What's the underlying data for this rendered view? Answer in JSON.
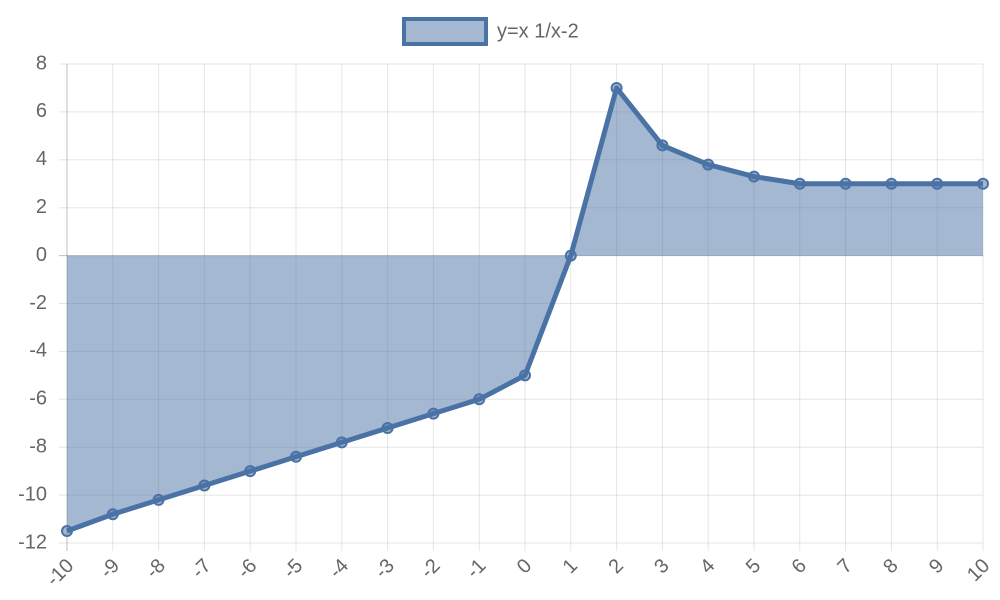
{
  "chart_data": {
    "type": "line",
    "fill": "origin",
    "x": [
      -10,
      -9,
      -8,
      -7,
      -6,
      -5,
      -4,
      -3,
      -2,
      -1,
      0,
      1,
      2,
      3,
      4,
      5,
      6,
      7,
      8,
      9,
      10
    ],
    "series": [
      {
        "name": "y=x 1/x-2",
        "color": "#4a72a5",
        "fill_color": "rgba(74,114,165,0.5)",
        "values": [
          -11.5,
          -10.8,
          -10.2,
          -9.6,
          -9.0,
          -8.4,
          -7.8,
          -7.2,
          -6.6,
          -6.0,
          -5.0,
          0,
          7,
          4.6,
          3.8,
          3.3,
          3.0,
          3.0,
          3.0,
          3.0,
          3.0
        ]
      }
    ],
    "xlim": [
      -10,
      10
    ],
    "xticks": [
      -10,
      -9,
      -8,
      -7,
      -6,
      -5,
      -4,
      -3,
      -2,
      -1,
      0,
      1,
      2,
      3,
      4,
      5,
      6,
      7,
      8,
      9,
      10
    ],
    "ylim": [
      -12,
      8
    ],
    "yticks": [
      -12,
      -10,
      -8,
      -6,
      -4,
      -2,
      0,
      2,
      4,
      6,
      8
    ],
    "grid": true,
    "legend": "top"
  }
}
